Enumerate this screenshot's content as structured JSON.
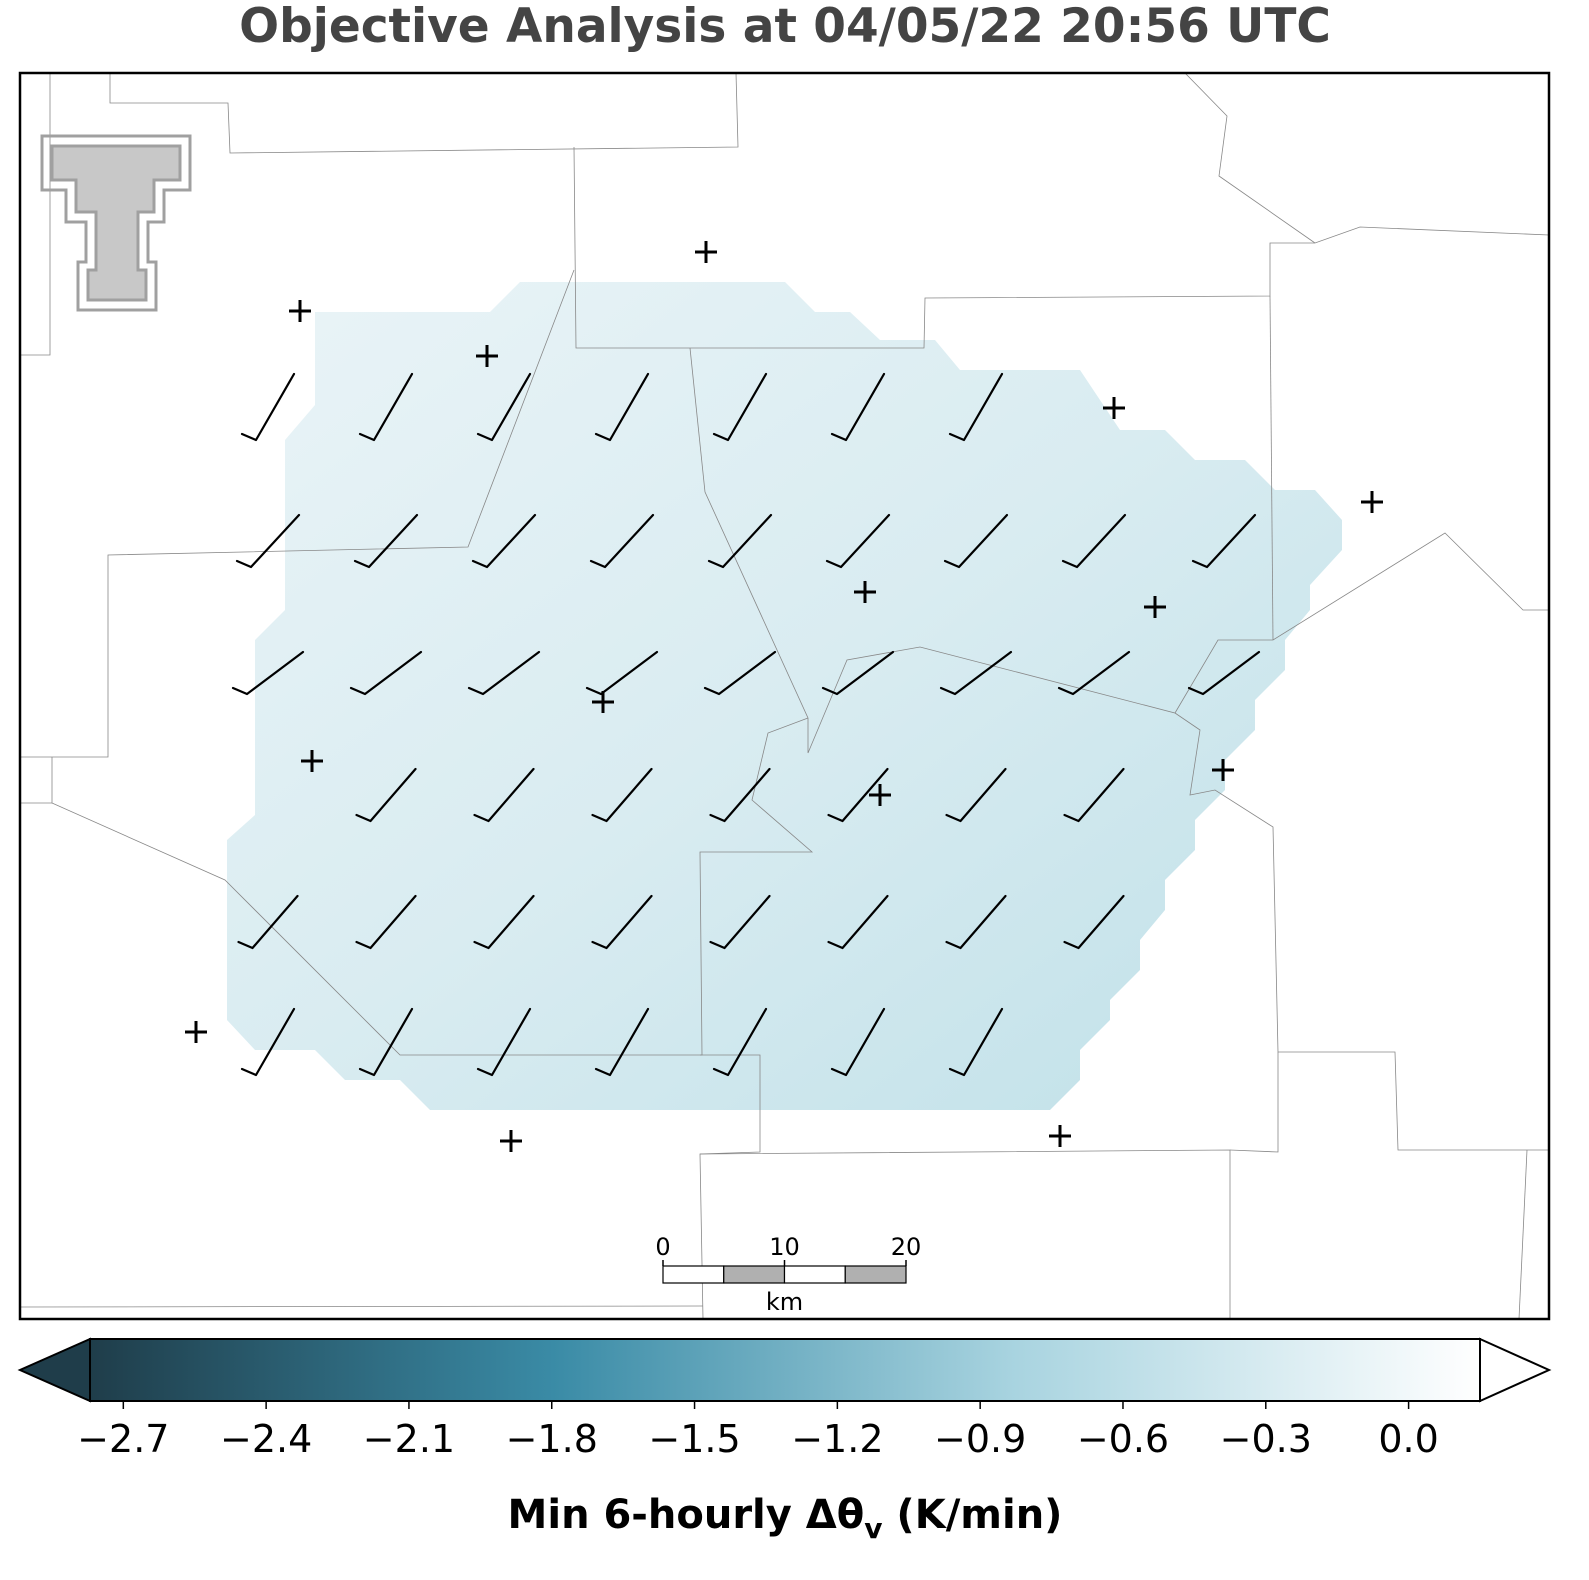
{
  "title": "Objective Analysis at 04/05/22 20:56 UTC",
  "colorbar": {
    "clim": [
      -2.77,
      0.15
    ],
    "colors": [
      "#1f3d4a",
      "#3a8ba6",
      "#a9d4e0",
      "#ffffff"
    ],
    "ticks": [
      {
        "value": -2.7,
        "label": "−2.7"
      },
      {
        "value": -2.4,
        "label": "−2.4"
      },
      {
        "value": -2.1,
        "label": "−2.1"
      },
      {
        "value": -1.8,
        "label": "−1.8"
      },
      {
        "value": -1.5,
        "label": "−1.5"
      },
      {
        "value": -1.2,
        "label": "−1.2"
      },
      {
        "value": -0.9,
        "label": "−0.9"
      },
      {
        "value": -0.6,
        "label": "−0.6"
      },
      {
        "value": -0.3,
        "label": "−0.3"
      },
      {
        "value": 0.0,
        "label": "0.0"
      }
    ],
    "label_main": "Min 6-hourly Δθ",
    "label_sub": "v",
    "label_end": " (K/min)"
  },
  "scale_bar": {
    "ticks": [
      0,
      10,
      20
    ],
    "unit": "km"
  }
}
